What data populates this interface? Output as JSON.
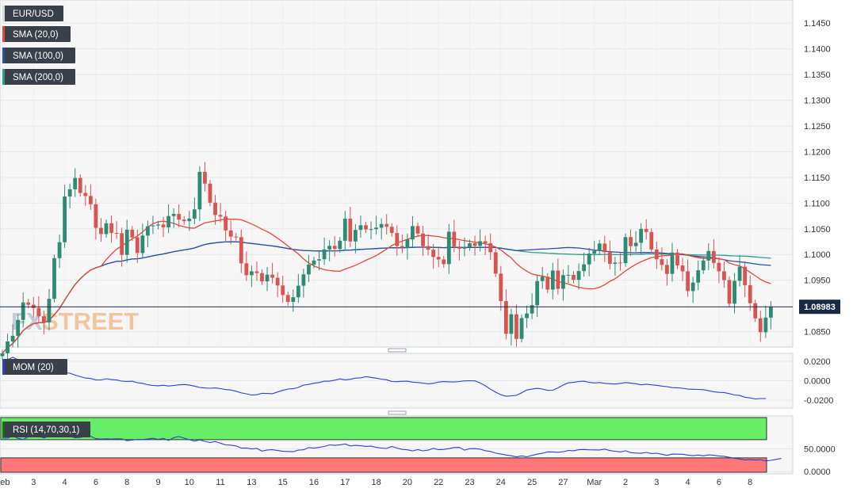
{
  "symbol": "EUR/USD",
  "price_label": "1.08983",
  "watermark": {
    "fx": "FX",
    "street": "STREET"
  },
  "colors": {
    "bull": "#2e8b73",
    "bear": "#d9534f",
    "sma20": "#e8463a",
    "sma100": "#2b4ea8",
    "sma200": "#2c9f8a",
    "price_line": "#1a2a44",
    "mom": "#2b3fd6",
    "rsi": "#2b3fd6",
    "rsi_over": "#66ee66",
    "rsi_under": "#ff7777"
  },
  "indicators": {
    "sma20": "SMA (20,0)",
    "sma100": "SMA (100,0)",
    "sma200": "SMA (200,0)",
    "mom": "MOM (20)",
    "rsi": "RSI (14,70,30,1)"
  },
  "chart_data": [
    {
      "type": "candlestick",
      "title": "",
      "timeframe": "4h",
      "ylim": [
        1.082,
        1.1495
      ],
      "price_ticks": [
        1.145,
        1.14,
        1.135,
        1.13,
        1.125,
        1.12,
        1.115,
        1.11,
        1.105,
        1.1,
        1.095,
        1.085
      ],
      "price_tick_labels": [
        "1.1450",
        "1.1400",
        "1.1350",
        "1.1300",
        "1.1250",
        "1.1200",
        "1.1150",
        "1.1100",
        "1.1050",
        "1.1000",
        "1.0950",
        "1.0850"
      ],
      "x_tick_labels": [
        "Feb",
        "3",
        "4",
        "6",
        "8",
        "9",
        "10",
        "11",
        "13",
        "15",
        "16",
        "17",
        "18",
        "20",
        "22",
        "23",
        "24",
        "25",
        "27",
        "Mar",
        "2",
        "3",
        "4",
        "6",
        "8"
      ],
      "x_tick_index": [
        0,
        6,
        12,
        18,
        24,
        30,
        36,
        42,
        48,
        54,
        60,
        66,
        72,
        78,
        84,
        90,
        96,
        102,
        108,
        114,
        120,
        126,
        132,
        138,
        144
      ],
      "last_price": 1.08983,
      "bias": [
        0.00055,
        0.0023,
        0.0011,
        0.0031,
        0.0034,
        -0.00045,
        -0.00065,
        -0.0016,
        -0.0012,
        0.0046,
        0.0079,
        0.0031,
        0.0089,
        0.0014,
        0.0022,
        -0.0029,
        -0.0006,
        -0.0016,
        -0.0046,
        -0.0012,
        0.0021,
        -0.0019,
        -5e-05,
        -0.0042,
        0.0049,
        -0.0015,
        -0.00305,
        0.0034,
        0.0018,
        0.00015,
        0.0002,
        -0.00055,
        0.0022,
        0.0004,
        -0.0011,
        -0.0003,
        0.0005,
        0.0018,
        0.0073,
        -0.0023,
        -0.0037,
        -0.0024,
        -0.0003,
        -0.0027,
        -0.0012,
        -0.0001,
        -0.0051,
        -0.0023,
        0.00075,
        -0.00035,
        -0.0016,
        0.0013,
        -0.0006,
        -0.0015,
        -0.00185,
        -0.00135,
        0.0009,
        0.00225,
        0.0022,
        0.0019,
        0.0008,
        0.00025,
        0.0019,
        0.0007,
        -0.0006,
        0.0016,
        0.0043,
        -0.00445,
        0.00225,
        0.0009,
        -0.0008,
        5e-05,
        0.0003,
        0.0007,
        -0.00055,
        -0.0012,
        -0.00255,
        -0.0003,
        0.0016,
        0.0026,
        -0.00145,
        -0.00245,
        -0.0007,
        -0.0014,
        -0.0005,
        -0.0009,
        0.0063,
        -0.0029,
        -0.0004,
        0.0003,
        0.00075,
        -0.0005,
        0.0009,
        -0.0004,
        -0.00175,
        -0.00415,
        -0.00535,
        -0.00635,
        0.0038,
        -0.0048,
        0.00405,
        0.0009,
        0.0016,
        0.0047,
        0.00085,
        -0.0025,
        0.0037,
        -0.00355,
        0.00265,
        5e-05,
        -0.00095,
        0.0017,
        0.0013,
        0.0021,
        0.00055,
        0.0014,
        -0.0017,
        -0.00225,
        0.00025,
        -0.0001,
        0.00505,
        -0.00175,
        0.00065,
        0.0027,
        -0.0006,
        -0.0034,
        -0.0019,
        -0.0011,
        -0.00175,
        0.00415,
        -0.0025,
        -0.00115,
        -0.00385,
        0.00165,
        0.0024,
        0.0019,
        0.00185,
        -0.0023,
        -0.00165,
        -0.0017,
        -0.0046,
        0.00445,
        0.00275,
        -0.0036,
        -0.0035,
        -0.00295,
        -0.0027,
        0.00285,
        0.0021
      ]
    },
    {
      "type": "line",
      "name": "MOM (20)",
      "ylim": [
        -0.028,
        0.028
      ],
      "y_ticks": [
        0.02,
        0.0,
        -0.02
      ],
      "y_tick_labels": [
        "0.0200",
        "0.0000",
        "-0.0200"
      ],
      "values": [
        0.0192,
        0.0215,
        0.024,
        0.0215,
        0.0203,
        0.0177,
        0.0159,
        0.0151,
        0.0145,
        0.0133,
        0.0109,
        0.0092,
        0.0083,
        0.0077,
        0.0058,
        0.0041,
        0.0028,
        0.0023,
        0.0009,
        0.0008,
        0.002,
        0.0011,
        0.0007,
        -0.0004,
        -0.0007,
        -0.0005,
        -0.0021,
        -0.0027,
        -0.0041,
        -0.0049,
        -0.0052,
        -0.0046,
        -0.0054,
        -0.0049,
        -0.0042,
        -0.0039,
        -0.0044,
        -0.0055,
        -0.0069,
        -0.0075,
        -0.0077,
        -0.0074,
        -0.0081,
        -0.0091,
        -0.0095,
        -0.0108,
        -0.0125,
        -0.0134,
        -0.0147,
        -0.0144,
        -0.0129,
        -0.0131,
        -0.0133,
        -0.0115,
        -0.0099,
        -0.0085,
        -0.0082,
        -0.0069,
        -0.0045,
        -0.0038,
        -0.0026,
        -0.0019,
        -0.0005,
        -0.0005,
        0.0006,
        0.0019,
        0.0009,
        0.0015,
        0.0027,
        0.0029,
        0.0041,
        0.0034,
        0.0026,
        0.0016,
        0.001,
        -0.0008,
        -0.001,
        -0.0006,
        -0.0005,
        -0.0015,
        -0.0019,
        -0.0024,
        -0.0032,
        -0.0027,
        -0.0014,
        -0.0009,
        -0.0011,
        -0.0013,
        -0.0008,
        -0.0002,
        -0.0,
        -0.0002,
        -0.0022,
        -0.0052,
        -0.0087,
        -0.0118,
        -0.0144,
        -0.0159,
        -0.0155,
        -0.0149,
        -0.0123,
        -0.0095,
        -0.0086,
        -0.0078,
        -0.0085,
        -0.0099,
        -0.0097,
        -0.0073,
        -0.0044,
        -0.0022,
        -0.0017,
        -0.0008,
        -0.0005,
        -0.0017,
        -0.0023,
        -0.0019,
        -0.0027,
        -0.0031,
        -0.0034,
        -0.0028,
        -0.0019,
        -0.0025,
        -0.0031,
        -0.0042,
        -0.0036,
        -0.0042,
        -0.0047,
        -0.0055,
        -0.0061,
        -0.0071,
        -0.0072,
        -0.0077,
        -0.0086,
        -0.0088,
        -0.0089,
        -0.0092,
        -0.0102,
        -0.0113,
        -0.0119,
        -0.0121,
        -0.0132,
        -0.0146,
        -0.0151,
        -0.0169,
        -0.0176,
        -0.0187,
        -0.0183,
        -0.0182
      ]
    },
    {
      "type": "line",
      "name": "RSI (14,70,30,1)",
      "ylim": [
        -5,
        122
      ],
      "y_ticks": [
        50,
        0
      ],
      "y_tick_labels": [
        "50.0000",
        "0.0000"
      ],
      "bands": {
        "overbought": 70,
        "oversold": 30
      },
      "values": [
        73.6,
        73.4,
        78.2,
        73.0,
        70.2,
        76.6,
        77.9,
        77.6,
        73.7,
        77.7,
        80.6,
        81.2,
        76.9,
        77.4,
        74.3,
        74.9,
        76.8,
        77.7,
        72.1,
        71.2,
        71.9,
        71.2,
        71.9,
        71.6,
        67.8,
        69.0,
        70.5,
        70.4,
        71.3,
        73.0,
        70.6,
        72.8,
        68.2,
        74.3,
        76.9,
        73.3,
        69.8,
        66.9,
        69.5,
        66.3,
        63.5,
        66.0,
        62.1,
        58.5,
        57.9,
        56.3,
        51.3,
        51.8,
        49.6,
        50.8,
        45.0,
        47.4,
        47.9,
        46.2,
        44.4,
        44.0,
        43.5,
        47.1,
        47.7,
        52.5,
        51.4,
        53.1,
        55.1,
        58.5,
        57.5,
        58.6,
        60.6,
        56.2,
        57.5,
        56.5,
        55.2,
        55.7,
        53.1,
        51.5,
        50.6,
        55.0,
        51.5,
        48.6,
        47.8,
        45.3,
        48.0,
        45.5,
        47.0,
        51.1,
        47.9,
        48.6,
        50.3,
        52.7,
        53.0,
        47.0,
        50.2,
        50.3,
        49.1,
        45.8,
        44.1,
        40.4,
        38.3,
        36.3,
        34.7,
        32.2,
        34.4,
        32.4,
        35.3,
        38.1,
        40.0,
        43.2,
        43.0,
        42.4,
        43.5,
        46.4,
        45.6,
        47.9,
        48.4,
        47.7,
        47.5,
        47.3,
        49.3,
        45.9,
        44.6,
        43.0,
        45.6,
        41.6,
        40.6,
        40.1,
        41.9,
        39.6,
        40.2,
        37.9,
        35.5,
        38.4,
        38.1,
        37.9,
        36.2,
        34.9,
        36.3,
        34.5,
        36.6,
        35.7,
        34.0,
        33.5,
        31.2,
        29.1,
        27.7,
        25.2,
        26.1,
        25.2,
        26.0,
        23.4,
        24.6,
        26.7,
        28.7
      ]
    }
  ]
}
